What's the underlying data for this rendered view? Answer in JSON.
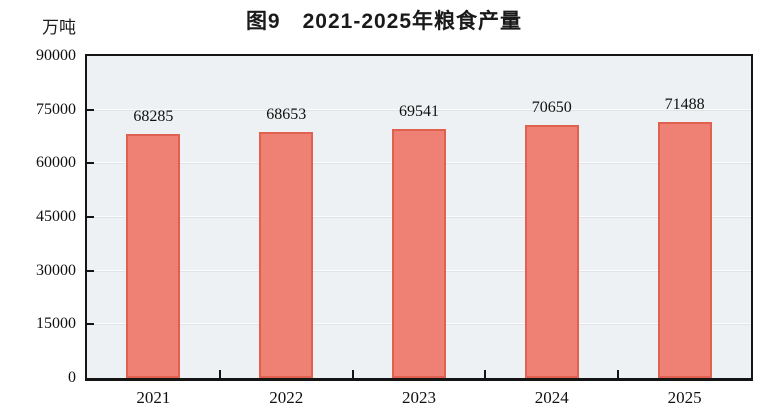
{
  "title": "图9　2021-2025年粮食产量",
  "unit_label": "万吨",
  "colors": {
    "bar_fill": "#ee8173",
    "bar_border": "#e0614f",
    "plot_background": "#eef1f3",
    "gridline": "#fbfcfd",
    "axis": "#141414",
    "text": "#111111"
  },
  "chart_data": {
    "type": "bar",
    "title": "图9　2021-2025年粮食产量",
    "categories": [
      "2021",
      "2022",
      "2023",
      "2024",
      "2025"
    ],
    "values": [
      68285,
      68653,
      69541,
      70650,
      71488
    ],
    "value_labels": [
      "68285",
      "68653",
      "69541",
      "70650",
      "71488"
    ],
    "xlabel": "",
    "ylabel": "万吨",
    "ylim": [
      0,
      90000
    ],
    "yticks": [
      0,
      15000,
      30000,
      45000,
      60000,
      75000,
      90000
    ],
    "grid": true,
    "legend_position": "none"
  }
}
